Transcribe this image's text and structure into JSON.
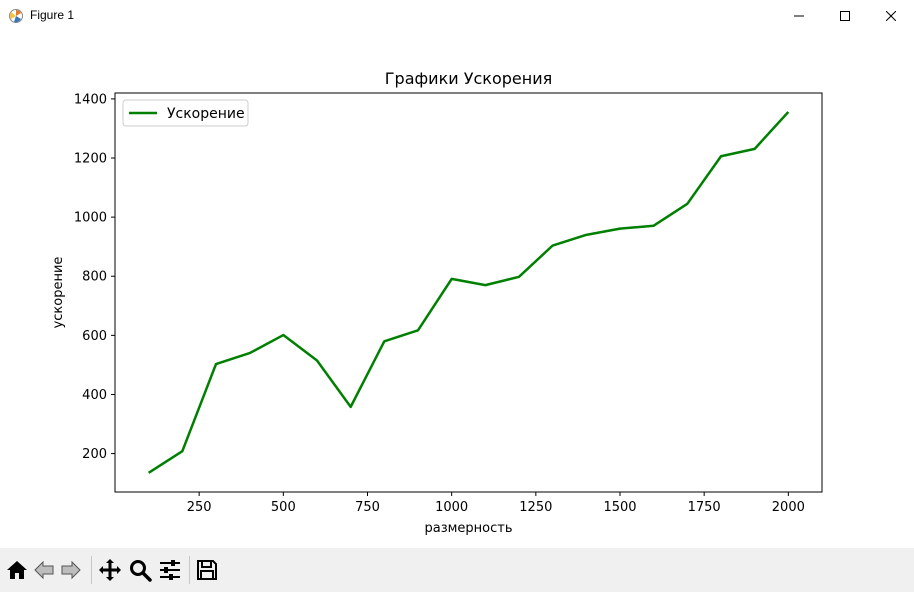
{
  "window": {
    "title": "Figure 1",
    "app_icon": "matplotlib-icon",
    "controls": [
      "minimize-icon",
      "maximize-icon",
      "close-icon"
    ]
  },
  "toolbar": {
    "buttons": [
      "home-icon",
      "back-icon",
      "forward-icon",
      "pan-icon",
      "zoom-icon",
      "configure-subplots-icon",
      "save-icon"
    ]
  },
  "colors": {
    "line": "#008000",
    "toolbar_bg": "#f0f0f0"
  },
  "chart_data": {
    "type": "line",
    "title": "Графики Ускорения",
    "xlabel": "размерность",
    "ylabel": "ускорение",
    "xlim": [
      0,
      2100
    ],
    "ylim": [
      70,
      1420
    ],
    "xticks": [
      250,
      500,
      750,
      1000,
      1250,
      1500,
      1750,
      2000
    ],
    "yticks": [
      200,
      400,
      600,
      800,
      1000,
      1200,
      1400
    ],
    "grid": false,
    "legend_position": "upper-left",
    "series": [
      {
        "name": "Ускорение",
        "color": "#008000",
        "x": [
          100,
          200,
          300,
          400,
          500,
          600,
          700,
          800,
          900,
          1000,
          1100,
          1200,
          1300,
          1400,
          1500,
          1600,
          1700,
          1800,
          1900,
          2000
        ],
        "y": [
          135,
          208,
          503,
          540,
          601,
          515,
          358,
          580,
          617,
          791,
          770,
          798,
          904,
          940,
          961,
          971,
          1045,
          1206,
          1231,
          1356
        ]
      }
    ]
  }
}
